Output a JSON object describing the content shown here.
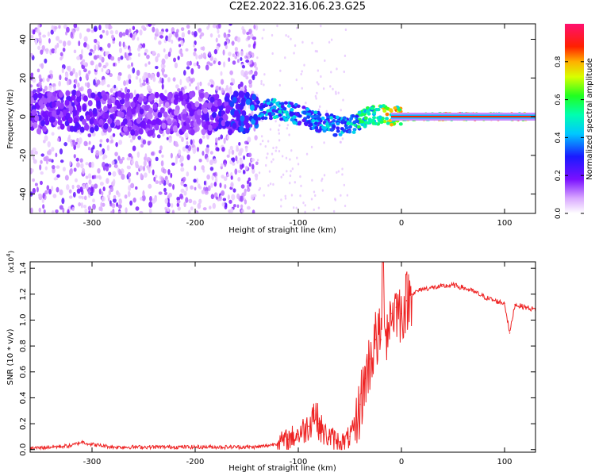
{
  "title": "C2E2.2022.316.06.23.G25",
  "chart_data": [
    {
      "type": "heatmap",
      "xlabel": "Height of straight line (km)",
      "ylabel": "Frequency (Hz)",
      "xlim": [
        -360,
        130
      ],
      "ylim": [
        -50,
        48
      ],
      "xticks": [
        -300,
        -200,
        -100,
        0,
        100
      ],
      "xtick_labels": [
        "-300",
        "-200",
        "-100",
        "0",
        "100"
      ],
      "yticks": [
        -40,
        -20,
        0,
        20,
        40
      ],
      "ytick_labels": [
        "-40",
        "-20",
        "0",
        "20",
        "40"
      ],
      "colorbar": {
        "label": "Normalized spectral amplitude",
        "range": [
          0,
          1
        ],
        "ticks": [
          0.0,
          0.2,
          0.4,
          0.6,
          0.8
        ],
        "tick_labels": [
          "0.0",
          "0.2",
          "0.4",
          "0.6",
          "0.8"
        ],
        "colormap": [
          "#ffffff",
          "#9a2cff",
          "#2020ff",
          "#00d8ff",
          "#00ff60",
          "#ffff00",
          "#ff3000",
          "#ff1070"
        ]
      },
      "signal_track": {
        "x": [
          -360,
          -300,
          -250,
          -200,
          -160,
          -140,
          -120,
          -100,
          -80,
          -60,
          -50,
          -40,
          -30,
          -20,
          -10,
          0,
          50,
          100,
          130
        ],
        "y": [
          2,
          3,
          1,
          2,
          2,
          3,
          4,
          1,
          -3,
          -5,
          -4,
          -2,
          1,
          1,
          0,
          0,
          0,
          0,
          0
        ],
        "amplitude": [
          0.25,
          0.25,
          0.22,
          0.22,
          0.35,
          0.45,
          0.5,
          0.45,
          0.45,
          0.5,
          0.55,
          0.6,
          0.65,
          0.8,
          0.8,
          0.85,
          0.9,
          0.9,
          0.9
        ]
      },
      "grid": false
    },
    {
      "type": "line",
      "xlabel": "Height of straight line (km)",
      "ylabel": "SNR (10 * v/v)",
      "y_multiplier": "(x10",
      "y_multiplier_exp": "4",
      "y_multiplier_close": ")",
      "xlim": [
        -360,
        130
      ],
      "ylim": [
        -0.02,
        1.45
      ],
      "xticks": [
        -300,
        -200,
        -100,
        0,
        100
      ],
      "xtick_labels": [
        "-300",
        "-200",
        "-100",
        "0",
        "100"
      ],
      "yticks": [
        0.0,
        0.2,
        0.4,
        0.6,
        0.8,
        1.0,
        1.2,
        1.4
      ],
      "ytick_labels": [
        "0.0",
        "0.2",
        "0.4",
        "0.6",
        "0.8",
        "1.0",
        "1.2",
        "1.4"
      ],
      "series": [
        {
          "color": "#ee2222",
          "x": [
            -360,
            -340,
            -320,
            -310,
            -300,
            -280,
            -260,
            -240,
            -220,
            -200,
            -180,
            -160,
            -140,
            -130,
            -120,
            -110,
            -100,
            -90,
            -85,
            -80,
            -75,
            -70,
            -65,
            -60,
            -55,
            -50,
            -45,
            -40,
            -35,
            -30,
            -25,
            -20,
            -18,
            -15,
            -10,
            -5,
            0,
            5,
            10,
            20,
            30,
            40,
            50,
            60,
            70,
            80,
            90,
            100,
            105,
            110,
            120,
            130
          ],
          "y": [
            0.01,
            0.02,
            0.03,
            0.06,
            0.04,
            0.02,
            0.02,
            0.02,
            0.02,
            0.02,
            0.02,
            0.02,
            0.02,
            0.03,
            0.05,
            0.08,
            0.12,
            0.18,
            0.3,
            0.2,
            0.12,
            0.1,
            0.08,
            0.06,
            0.06,
            0.1,
            0.15,
            0.35,
            0.55,
            0.7,
            0.85,
            0.85,
            1.45,
            0.9,
            1.05,
            1.1,
            1.05,
            1.15,
            1.2,
            1.24,
            1.25,
            1.26,
            1.27,
            1.25,
            1.22,
            1.18,
            1.15,
            1.13,
            0.9,
            1.12,
            1.1,
            1.08
          ]
        }
      ],
      "grid": false
    }
  ]
}
